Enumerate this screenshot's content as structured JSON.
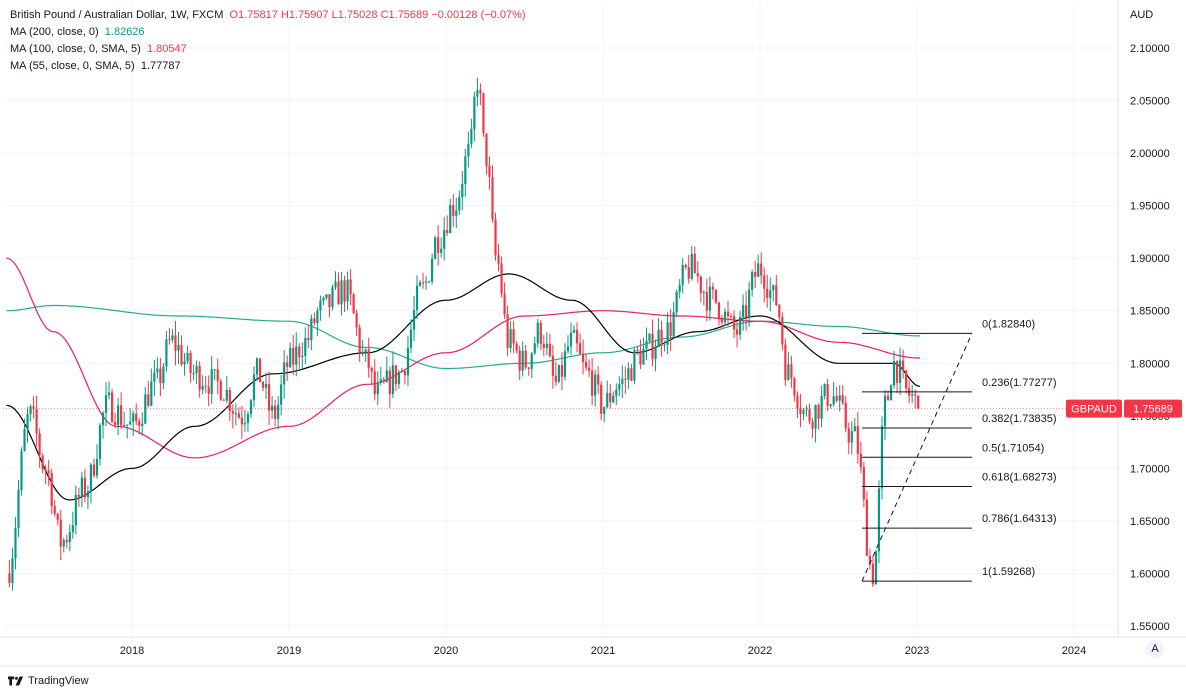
{
  "legend": {
    "symbol": "British Pound / Australian Dollar, 1W, FXCM",
    "ohlc": "O1.75817  H1.75907  L1.75028  C1.75689  −0.00128 (−0.07%)",
    "ma200_label": "MA (200, close, 0)",
    "ma200_value": "1.82626",
    "ma100_label": "MA (100, close, 0, SMA, 5)",
    "ma100_value": "1.80547",
    "ma55_label": "MA (55, close, 0, SMA, 5)",
    "ma55_value": "1.77787"
  },
  "price_tag": {
    "symbol": "GBPAUD",
    "value": "1.75689"
  },
  "brand": "TradingView",
  "axis_button": "A",
  "colors": {
    "up": "#089981",
    "down": "#f23645",
    "ma200": "#22ab94",
    "ma100": "#e91e63",
    "ma55": "#000000",
    "grid": "#f0f3fa",
    "tag": "#f23645"
  },
  "chart_data": {
    "type": "candlestick",
    "y_axis_title": "AUD",
    "y_ticks": [
      1.55,
      1.6,
      1.65,
      1.7,
      1.75,
      1.8,
      1.85,
      1.9,
      1.95,
      2.0,
      2.05,
      2.1
    ],
    "y_tick_labels": [
      "1.55000",
      "1.60000",
      "1.65000",
      "1.70000",
      "1.75000",
      "1.80000",
      "1.85000",
      "1.90000",
      "1.95000",
      "2.00000",
      "2.05000",
      "2.10000"
    ],
    "ylim": [
      1.53,
      2.14
    ],
    "x_ticks": [
      2018,
      2019,
      2020,
      2021,
      2022,
      2023,
      2024
    ],
    "x_tick_labels": [
      "2018",
      "2019",
      "2020",
      "2021",
      "2022",
      "2023",
      "2024"
    ],
    "xlim": [
      2017.2,
      2024.3
    ],
    "close_path": [
      [
        2017.2,
        1.6
      ],
      [
        2017.35,
        1.75
      ],
      [
        2017.45,
        1.7
      ],
      [
        2017.55,
        1.63
      ],
      [
        2017.7,
        1.68
      ],
      [
        2017.85,
        1.76
      ],
      [
        2018.0,
        1.74
      ],
      [
        2018.15,
        1.78
      ],
      [
        2018.25,
        1.82
      ],
      [
        2018.4,
        1.79
      ],
      [
        2018.55,
        1.78
      ],
      [
        2018.7,
        1.75
      ],
      [
        2018.8,
        1.79
      ],
      [
        2018.9,
        1.75
      ],
      [
        2019.0,
        1.8
      ],
      [
        2019.1,
        1.82
      ],
      [
        2019.2,
        1.85
      ],
      [
        2019.35,
        1.87
      ],
      [
        2019.5,
        1.8
      ],
      [
        2019.55,
        1.77
      ],
      [
        2019.7,
        1.79
      ],
      [
        2019.85,
        1.87
      ],
      [
        2019.95,
        1.92
      ],
      [
        2020.05,
        1.95
      ],
      [
        2020.15,
        2.0
      ],
      [
        2020.2,
        2.07
      ],
      [
        2020.25,
        2.0
      ],
      [
        2020.32,
        1.9
      ],
      [
        2020.4,
        1.82
      ],
      [
        2020.5,
        1.8
      ],
      [
        2020.6,
        1.83
      ],
      [
        2020.7,
        1.78
      ],
      [
        2020.8,
        1.82
      ],
      [
        2020.9,
        1.79
      ],
      [
        2021.0,
        1.76
      ],
      [
        2021.1,
        1.78
      ],
      [
        2021.25,
        1.81
      ],
      [
        2021.4,
        1.83
      ],
      [
        2021.55,
        1.89
      ],
      [
        2021.7,
        1.86
      ],
      [
        2021.85,
        1.83
      ],
      [
        2022.0,
        1.89
      ],
      [
        2022.1,
        1.86
      ],
      [
        2022.18,
        1.79
      ],
      [
        2022.3,
        1.75
      ],
      [
        2022.45,
        1.77
      ],
      [
        2022.6,
        1.73
      ],
      [
        2022.72,
        1.6
      ],
      [
        2022.8,
        1.76
      ],
      [
        2022.85,
        1.8
      ],
      [
        2022.95,
        1.77
      ],
      [
        2023.02,
        1.757
      ]
    ],
    "ma200_path": [
      [
        2017.2,
        1.85
      ],
      [
        2017.5,
        1.855
      ],
      [
        2018.3,
        1.845
      ],
      [
        2019.0,
        1.84
      ],
      [
        2019.5,
        1.815
      ],
      [
        2020.0,
        1.795
      ],
      [
        2020.5,
        1.8
      ],
      [
        2021.0,
        1.81
      ],
      [
        2021.5,
        1.825
      ],
      [
        2022.0,
        1.84
      ],
      [
        2022.5,
        1.835
      ],
      [
        2023.02,
        1.826
      ]
    ],
    "ma100_path": [
      [
        2017.2,
        1.9
      ],
      [
        2017.5,
        1.83
      ],
      [
        2017.9,
        1.74
      ],
      [
        2018.4,
        1.71
      ],
      [
        2019.0,
        1.74
      ],
      [
        2019.5,
        1.78
      ],
      [
        2020.0,
        1.81
      ],
      [
        2020.5,
        1.845
      ],
      [
        2021.0,
        1.85
      ],
      [
        2021.5,
        1.845
      ],
      [
        2022.0,
        1.84
      ],
      [
        2022.5,
        1.82
      ],
      [
        2023.02,
        1.805
      ]
    ],
    "ma55_path": [
      [
        2017.2,
        1.76
      ],
      [
        2017.6,
        1.67
      ],
      [
        2018.0,
        1.7
      ],
      [
        2018.4,
        1.74
      ],
      [
        2018.9,
        1.79
      ],
      [
        2019.5,
        1.81
      ],
      [
        2020.0,
        1.86
      ],
      [
        2020.4,
        1.885
      ],
      [
        2020.8,
        1.86
      ],
      [
        2021.2,
        1.81
      ],
      [
        2021.6,
        1.83
      ],
      [
        2022.0,
        1.845
      ],
      [
        2022.5,
        1.8
      ],
      [
        2022.85,
        1.8
      ],
      [
        2023.02,
        1.778
      ]
    ],
    "fib": {
      "x_start": 2022.65,
      "x_end": 2023.35,
      "levels": [
        {
          "label": "0(1.82840)",
          "value": 1.8284
        },
        {
          "label": "0.236(1.77277)",
          "value": 1.77277
        },
        {
          "label": "0.382(1.73835)",
          "value": 1.73835
        },
        {
          "label": "0.5(1.71054)",
          "value": 1.71054
        },
        {
          "label": "0.618(1.68273)",
          "value": 1.68273
        },
        {
          "label": "0.786(1.64313)",
          "value": 1.64313
        },
        {
          "label": "1(1.59268)",
          "value": 1.59268
        }
      ]
    },
    "last_price": 1.75689
  }
}
